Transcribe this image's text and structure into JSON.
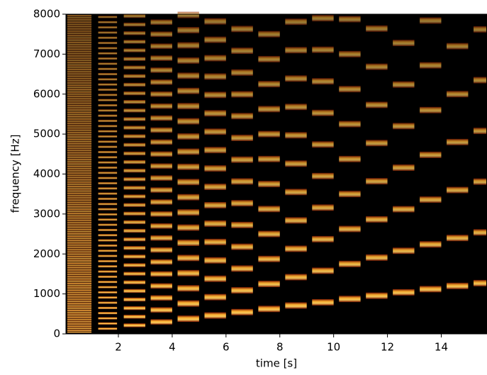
{
  "chart_data": {
    "type": "spectrogram",
    "xlabel": "time [s]",
    "ylabel": "frequency [Hz]",
    "xlim": [
      0.05,
      15.7
    ],
    "ylim": [
      0,
      8000
    ],
    "xticks": [
      2,
      4,
      6,
      8,
      10,
      12,
      14
    ],
    "yticks": [
      0,
      1000,
      2000,
      3000,
      4000,
      5000,
      6000,
      7000,
      8000
    ],
    "segments": [
      {
        "start": 0.1,
        "end": 1.0,
        "f0": 45
      },
      {
        "start": 1.25,
        "end": 1.95,
        "f0": 130
      },
      {
        "start": 2.2,
        "end": 3.0,
        "f0": 215
      },
      {
        "start": 3.2,
        "end": 4.0,
        "f0": 300
      },
      {
        "start": 4.2,
        "end": 5.0,
        "f0": 380
      },
      {
        "start": 5.2,
        "end": 6.0,
        "f0": 460
      },
      {
        "start": 6.2,
        "end": 7.0,
        "f0": 545
      },
      {
        "start": 7.2,
        "end": 8.0,
        "f0": 625
      },
      {
        "start": 8.2,
        "end": 9.0,
        "f0": 710
      },
      {
        "start": 9.2,
        "end": 10.0,
        "f0": 790
      },
      {
        "start": 10.2,
        "end": 11.0,
        "f0": 875
      },
      {
        "start": 11.2,
        "end": 12.0,
        "f0": 955
      },
      {
        "start": 12.2,
        "end": 13.0,
        "f0": 1040
      },
      {
        "start": 13.2,
        "end": 14.0,
        "f0": 1120
      },
      {
        "start": 14.2,
        "end": 15.0,
        "f0": 1200
      },
      {
        "start": 15.2,
        "end": 15.7,
        "f0": 1270
      }
    ]
  }
}
